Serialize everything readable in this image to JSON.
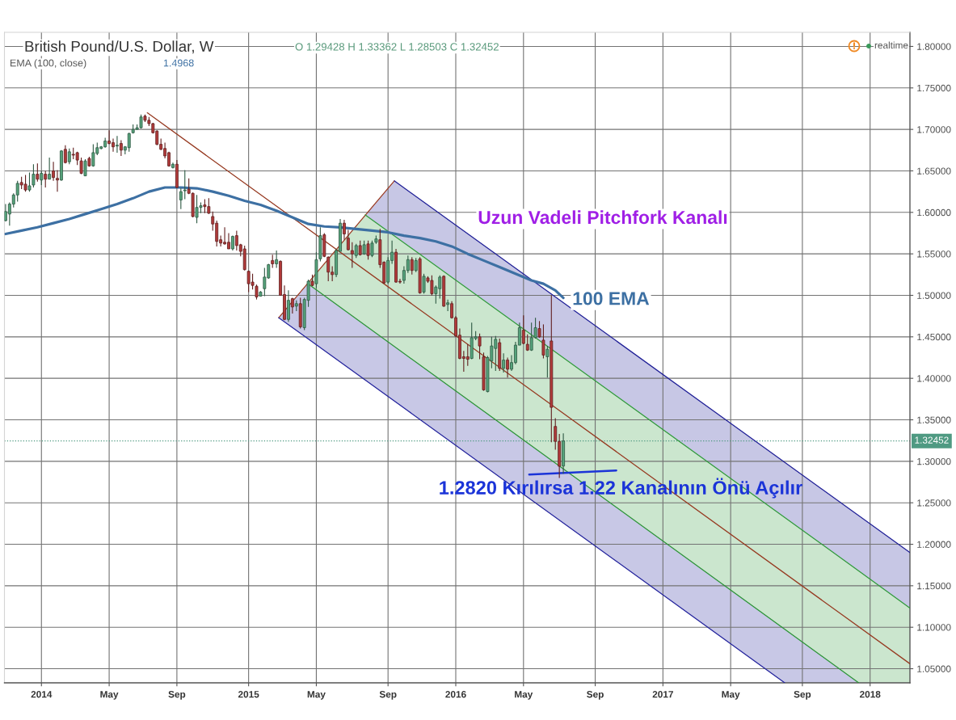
{
  "chart_data": {
    "type": "candlestick",
    "title": "British Pound/U.S. Dollar, W",
    "x": [
      "2013-11-04",
      "2013-11-11",
      "2013-11-18",
      "2013-11-25",
      "2013-12-02",
      "2013-12-09",
      "2013-12-16",
      "2013-12-23",
      "2013-12-30",
      "2014-01-06",
      "2014-01-13",
      "2014-01-20",
      "2014-01-27",
      "2014-02-03",
      "2014-02-10",
      "2014-02-17",
      "2014-02-24",
      "2014-03-03",
      "2014-03-10",
      "2014-03-17",
      "2014-03-24",
      "2014-03-31",
      "2014-04-07",
      "2014-04-14",
      "2014-04-21",
      "2014-04-28",
      "2014-05-05",
      "2014-05-12",
      "2014-05-19",
      "2014-05-26",
      "2014-06-02",
      "2014-06-09",
      "2014-06-16",
      "2014-06-23",
      "2014-06-30",
      "2014-07-07",
      "2014-07-14",
      "2014-07-21",
      "2014-07-28",
      "2014-08-04",
      "2014-08-11",
      "2014-08-18",
      "2014-08-25",
      "2014-09-01",
      "2014-09-08",
      "2014-09-15",
      "2014-09-22",
      "2014-09-29",
      "2014-10-06",
      "2014-10-13",
      "2014-10-20",
      "2014-10-27",
      "2014-11-03",
      "2014-11-10",
      "2014-11-17",
      "2014-11-24",
      "2014-12-01",
      "2014-12-08",
      "2014-12-15",
      "2014-12-22",
      "2014-12-29",
      "2015-01-05",
      "2015-01-12",
      "2015-01-19",
      "2015-01-26",
      "2015-02-02",
      "2015-02-09",
      "2015-02-16",
      "2015-02-23",
      "2015-03-02",
      "2015-03-09",
      "2015-03-16",
      "2015-03-23",
      "2015-03-30",
      "2015-04-06",
      "2015-04-13",
      "2015-04-20",
      "2015-04-27",
      "2015-05-04",
      "2015-05-11",
      "2015-05-18",
      "2015-05-25",
      "2015-06-01",
      "2015-06-08",
      "2015-06-15",
      "2015-06-22",
      "2015-06-29",
      "2015-07-06",
      "2015-07-13",
      "2015-07-20",
      "2015-07-27",
      "2015-08-03",
      "2015-08-10",
      "2015-08-17",
      "2015-08-24",
      "2015-08-31",
      "2015-09-07",
      "2015-09-14",
      "2015-09-21",
      "2015-09-28",
      "2015-10-05",
      "2015-10-12",
      "2015-10-19",
      "2015-10-26",
      "2015-11-02",
      "2015-11-09",
      "2015-11-16",
      "2015-11-23",
      "2015-11-30",
      "2015-12-07",
      "2015-12-14",
      "2015-12-21",
      "2015-12-28",
      "2016-01-04",
      "2016-01-11",
      "2016-01-18",
      "2016-01-25",
      "2016-02-01",
      "2016-02-08",
      "2016-02-15",
      "2016-02-22",
      "2016-02-29",
      "2016-03-07",
      "2016-03-14",
      "2016-03-21",
      "2016-03-28",
      "2016-04-04",
      "2016-04-11",
      "2016-04-18",
      "2016-04-25",
      "2016-05-02",
      "2016-05-09",
      "2016-05-16",
      "2016-05-23",
      "2016-05-30",
      "2016-06-06",
      "2016-06-13",
      "2016-06-20",
      "2016-06-27",
      "2016-07-04",
      "2016-07-11"
    ],
    "ohlc": [
      [
        1.59,
        1.61,
        1.589,
        1.601
      ],
      [
        1.598,
        1.612,
        1.584,
        1.61
      ],
      [
        1.61,
        1.623,
        1.606,
        1.621
      ],
      [
        1.621,
        1.638,
        1.613,
        1.635
      ],
      [
        1.636,
        1.643,
        1.628,
        1.633
      ],
      [
        1.634,
        1.645,
        1.625,
        1.627
      ],
      [
        1.627,
        1.648,
        1.625,
        1.632
      ],
      [
        1.633,
        1.658,
        1.63,
        1.646
      ],
      [
        1.646,
        1.659,
        1.637,
        1.64
      ],
      [
        1.639,
        1.65,
        1.633,
        1.647
      ],
      [
        1.646,
        1.65,
        1.63,
        1.64
      ],
      [
        1.64,
        1.666,
        1.64,
        1.646
      ],
      [
        1.65,
        1.661,
        1.638,
        1.642
      ],
      [
        1.641,
        1.651,
        1.625,
        1.639
      ],
      [
        1.639,
        1.675,
        1.638,
        1.674
      ],
      [
        1.676,
        1.681,
        1.659,
        1.66
      ],
      [
        1.661,
        1.677,
        1.658,
        1.673
      ],
      [
        1.67,
        1.678,
        1.664,
        1.669
      ],
      [
        1.672,
        1.673,
        1.657,
        1.663
      ],
      [
        1.662,
        1.666,
        1.646,
        1.647
      ],
      [
        1.644,
        1.664,
        1.644,
        1.662
      ],
      [
        1.665,
        1.667,
        1.655,
        1.656
      ],
      [
        1.656,
        1.682,
        1.655,
        1.672
      ],
      [
        1.671,
        1.684,
        1.669,
        1.678
      ],
      [
        1.677,
        1.68,
        1.676,
        1.679
      ],
      [
        1.679,
        1.69,
        1.678,
        1.686
      ],
      [
        1.686,
        1.699,
        1.682,
        1.683
      ],
      [
        1.684,
        1.689,
        1.673,
        1.679
      ],
      [
        1.68,
        1.692,
        1.672,
        1.681
      ],
      [
        1.683,
        1.687,
        1.668,
        1.675
      ],
      [
        1.675,
        1.68,
        1.67,
        1.679
      ],
      [
        1.678,
        1.696,
        1.673,
        1.695
      ],
      [
        1.696,
        1.706,
        1.695,
        1.7
      ],
      [
        1.7,
        1.706,
        1.7,
        1.702
      ],
      [
        1.702,
        1.718,
        1.701,
        1.715
      ],
      [
        1.716,
        1.718,
        1.709,
        1.711
      ],
      [
        1.711,
        1.715,
        1.704,
        1.707
      ],
      [
        1.707,
        1.708,
        1.695,
        1.696
      ],
      [
        1.698,
        1.699,
        1.681,
        1.682
      ],
      [
        1.682,
        1.689,
        1.675,
        1.676
      ],
      [
        1.677,
        1.684,
        1.665,
        1.668
      ],
      [
        1.672,
        1.673,
        1.655,
        1.656
      ],
      [
        1.654,
        1.66,
        1.653,
        1.658
      ],
      [
        1.658,
        1.663,
        1.629,
        1.63
      ],
      [
        1.615,
        1.629,
        1.604,
        1.625
      ],
      [
        1.626,
        1.651,
        1.616,
        1.627
      ],
      [
        1.628,
        1.641,
        1.622,
        1.623
      ],
      [
        1.623,
        1.624,
        1.594,
        1.595
      ],
      [
        1.594,
        1.621,
        1.587,
        1.606
      ],
      [
        1.606,
        1.612,
        1.599,
        1.608
      ],
      [
        1.609,
        1.616,
        1.599,
        1.607
      ],
      [
        1.607,
        1.617,
        1.598,
        1.599
      ],
      [
        1.595,
        1.601,
        1.578,
        1.586
      ],
      [
        1.587,
        1.59,
        1.559,
        1.565
      ],
      [
        1.567,
        1.572,
        1.559,
        1.563
      ],
      [
        1.564,
        1.582,
        1.561,
        1.562
      ],
      [
        1.564,
        1.575,
        1.556,
        1.556
      ],
      [
        1.556,
        1.572,
        1.554,
        1.571
      ],
      [
        1.572,
        1.578,
        1.554,
        1.56
      ],
      [
        1.561,
        1.562,
        1.547,
        1.553
      ],
      [
        1.556,
        1.56,
        1.53,
        1.531
      ],
      [
        1.529,
        1.53,
        1.504,
        1.514
      ],
      [
        1.516,
        1.526,
        1.507,
        1.512
      ],
      [
        1.511,
        1.513,
        1.495,
        1.498
      ],
      [
        1.499,
        1.505,
        1.499,
        1.504
      ],
      [
        1.508,
        1.533,
        1.499,
        1.522
      ],
      [
        1.521,
        1.538,
        1.52,
        1.537
      ],
      [
        1.542,
        1.549,
        1.533,
        1.538
      ],
      [
        1.538,
        1.554,
        1.533,
        1.543
      ],
      [
        1.541,
        1.542,
        1.5,
        1.5
      ],
      [
        1.501,
        1.512,
        1.47,
        1.471
      ],
      [
        1.471,
        1.506,
        1.468,
        1.494
      ],
      [
        1.496,
        1.497,
        1.478,
        1.486
      ],
      [
        1.487,
        1.494,
        1.481,
        1.49
      ],
      [
        1.49,
        1.497,
        1.46,
        1.462
      ],
      [
        1.461,
        1.497,
        1.458,
        1.495
      ],
      [
        1.494,
        1.519,
        1.486,
        1.517
      ],
      [
        1.517,
        1.525,
        1.511,
        1.512
      ],
      [
        1.514,
        1.552,
        1.509,
        1.543
      ],
      [
        1.544,
        1.582,
        1.541,
        1.572
      ],
      [
        1.573,
        1.575,
        1.546,
        1.547
      ],
      [
        1.546,
        1.547,
        1.517,
        1.528
      ],
      [
        1.528,
        1.535,
        1.517,
        1.525
      ],
      [
        1.525,
        1.556,
        1.522,
        1.554
      ],
      [
        1.553,
        1.592,
        1.553,
        1.587
      ],
      [
        1.587,
        1.591,
        1.567,
        1.574
      ],
      [
        1.569,
        1.579,
        1.554,
        1.555
      ],
      [
        1.554,
        1.564,
        1.533,
        1.55
      ],
      [
        1.548,
        1.562,
        1.545,
        1.56
      ],
      [
        1.56,
        1.566,
        1.548,
        1.549
      ],
      [
        1.55,
        1.566,
        1.549,
        1.561
      ],
      [
        1.562,
        1.566,
        1.543,
        1.548
      ],
      [
        1.548,
        1.566,
        1.546,
        1.563
      ],
      [
        1.564,
        1.572,
        1.562,
        1.568
      ],
      [
        1.567,
        1.58,
        1.533,
        1.537
      ],
      [
        1.54,
        1.541,
        1.514,
        1.515
      ],
      [
        1.516,
        1.546,
        1.514,
        1.542
      ],
      [
        1.542,
        1.566,
        1.538,
        1.552
      ],
      [
        1.552,
        1.556,
        1.515,
        1.516
      ],
      [
        1.517,
        1.52,
        1.514,
        1.516
      ],
      [
        1.518,
        1.535,
        1.514,
        1.53
      ],
      [
        1.53,
        1.548,
        1.527,
        1.543
      ],
      [
        1.543,
        1.546,
        1.525,
        1.53
      ],
      [
        1.53,
        1.545,
        1.528,
        1.542
      ],
      [
        1.544,
        1.546,
        1.502,
        1.503
      ],
      [
        1.504,
        1.526,
        1.502,
        1.523
      ],
      [
        1.521,
        1.523,
        1.515,
        1.517
      ],
      [
        1.518,
        1.524,
        1.5,
        1.502
      ],
      [
        1.502,
        1.512,
        1.49,
        1.51
      ],
      [
        1.508,
        1.524,
        1.496,
        1.522
      ],
      [
        1.523,
        1.524,
        1.486,
        1.487
      ],
      [
        1.489,
        1.495,
        1.481,
        1.491
      ],
      [
        1.49,
        1.493,
        1.472,
        1.473
      ],
      [
        1.473,
        1.475,
        1.45,
        1.451
      ],
      [
        1.452,
        1.46,
        1.423,
        1.424
      ],
      [
        1.426,
        1.433,
        1.408,
        1.424
      ],
      [
        1.426,
        1.441,
        1.415,
        1.423
      ],
      [
        1.424,
        1.467,
        1.423,
        1.449
      ],
      [
        1.448,
        1.457,
        1.446,
        1.45
      ],
      [
        1.45,
        1.454,
        1.423,
        1.439
      ],
      [
        1.426,
        1.431,
        1.385,
        1.386
      ],
      [
        1.384,
        1.427,
        1.383,
        1.425
      ],
      [
        1.421,
        1.45,
        1.412,
        1.439
      ],
      [
        1.436,
        1.451,
        1.409,
        1.447
      ],
      [
        1.443,
        1.448,
        1.409,
        1.412
      ],
      [
        1.412,
        1.43,
        1.407,
        1.422
      ],
      [
        1.422,
        1.425,
        1.401,
        1.411
      ],
      [
        1.411,
        1.428,
        1.409,
        1.419
      ],
      [
        1.419,
        1.444,
        1.417,
        1.44
      ],
      [
        1.44,
        1.467,
        1.44,
        1.461
      ],
      [
        1.458,
        1.476,
        1.441,
        1.442
      ],
      [
        1.441,
        1.453,
        1.433,
        1.434
      ],
      [
        1.434,
        1.467,
        1.433,
        1.449
      ],
      [
        1.449,
        1.473,
        1.448,
        1.461
      ],
      [
        1.46,
        1.469,
        1.449,
        1.45
      ],
      [
        1.446,
        1.465,
        1.424,
        1.428
      ],
      [
        1.426,
        1.439,
        1.401,
        1.435
      ],
      [
        1.445,
        1.5,
        1.323,
        1.365
      ],
      [
        1.342,
        1.352,
        1.314,
        1.324
      ],
      [
        1.324,
        1.333,
        1.28,
        1.294
      ],
      [
        1.29428,
        1.33362,
        1.28503,
        1.32452
      ]
    ],
    "colors": [
      "#56a47c",
      "#56a47c",
      "#56a47c",
      "#56a47c",
      "#b23a3a",
      "#b23a3a",
      "#56a47c",
      "#56a47c",
      "#b23a3a",
      "#56a47c",
      "#b23a3a",
      "#56a47c",
      "#b23a3a",
      "#b23a3a",
      "#56a47c",
      "#b23a3a",
      "#56a47c",
      "#b23a3a",
      "#b23a3a",
      "#b23a3a",
      "#56a47c",
      "#b23a3a",
      "#56a47c",
      "#56a47c",
      "#56a47c",
      "#56a47c",
      "#b23a3a",
      "#b23a3a",
      "#56a47c",
      "#b23a3a",
      "#56a47c",
      "#56a47c",
      "#56a47c",
      "#56a47c",
      "#56a47c",
      "#b23a3a",
      "#b23a3a",
      "#b23a3a",
      "#b23a3a",
      "#b23a3a",
      "#b23a3a",
      "#b23a3a",
      "#56a47c",
      "#b23a3a",
      "#56a47c",
      "#56a47c",
      "#b23a3a",
      "#b23a3a",
      "#56a47c",
      "#56a47c",
      "#b23a3a",
      "#b23a3a",
      "#b23a3a",
      "#b23a3a",
      "#b23a3a",
      "#b23a3a",
      "#b23a3a",
      "#56a47c",
      "#b23a3a",
      "#b23a3a",
      "#b23a3a",
      "#b23a3a",
      "#b23a3a",
      "#b23a3a",
      "#56a47c",
      "#56a47c",
      "#56a47c",
      "#b23a3a",
      "#56a47c",
      "#b23a3a",
      "#b23a3a",
      "#56a47c",
      "#b23a3a",
      "#56a47c",
      "#b23a3a",
      "#56a47c",
      "#56a47c",
      "#b23a3a",
      "#56a47c",
      "#56a47c",
      "#b23a3a",
      "#b23a3a",
      "#b23a3a",
      "#56a47c",
      "#56a47c",
      "#b23a3a",
      "#b23a3a",
      "#b23a3a",
      "#56a47c",
      "#b23a3a",
      "#56a47c",
      "#b23a3a",
      "#56a47c",
      "#56a47c",
      "#b23a3a",
      "#b23a3a",
      "#56a47c",
      "#56a47c",
      "#b23a3a",
      "#b23a3a",
      "#56a47c",
      "#56a47c",
      "#b23a3a",
      "#56a47c",
      "#b23a3a",
      "#56a47c",
      "#b23a3a",
      "#b23a3a",
      "#56a47c",
      "#56a47c",
      "#b23a3a",
      "#56a47c",
      "#b23a3a",
      "#b23a3a",
      "#b23a3a",
      "#b23a3a",
      "#b23a3a",
      "#56a47c",
      "#56a47c",
      "#b23a3a",
      "#b23a3a",
      "#56a47c",
      "#56a47c",
      "#56a47c",
      "#b23a3a",
      "#56a47c",
      "#b23a3a",
      "#56a47c",
      "#56a47c",
      "#56a47c",
      "#b23a3a",
      "#b23a3a",
      "#56a47c",
      "#56a47c",
      "#b23a3a",
      "#b23a3a",
      "#56a47c",
      "#b23a3a",
      "#b23a3a",
      "#b23a3a",
      "#56a47c"
    ],
    "series": [
      {
        "type": "line",
        "color": "#9c3d24",
        "x": [
          "2015-02-27",
          "2015-09-18"
        ],
        "values": [
          1.473,
          1.638
        ]
      },
      {
        "type": "line",
        "color": "#1e1e96",
        "x": [
          "2015-07-29",
          "2015-09-18",
          "2018-03-12"
        ],
        "values": [
          null,
          1.638,
          1.19
        ],
        "lower": [
          1.597,
          1.572,
          1.123
        ],
        "upper": [
          1.597,
          1.638,
          1.19
        ]
      },
      {
        "type": "line",
        "color": "#22229c",
        "x": [
          "2015-02-27",
          "2015-04-19",
          "2017-08-04",
          "2017-12-12"
        ],
        "values": [
          1.473,
          1.448,
          1.033,
          null
        ],
        "lower": [
          1.473,
          1.448,
          1.033,
          1.033
        ],
        "upper": [
          1.473,
          1.514,
          1.098,
          1.033
        ]
      },
      {
        "type": "line",
        "color": "#2f9a3a",
        "x": [
          "2015-04-19",
          "2015-07-29",
          "2017-12-12",
          "2018-03-12"
        ],
        "values": [
          null,
          1.597,
          1.168,
          1.123
        ],
        "lower": [
          1.514,
          1.464,
          1.033,
          1.033
        ],
        "upper": [
          1.514,
          1.597,
          1.168,
          1.123
        ]
      },
      {
        "type": "line",
        "color": "#2b9436",
        "x": [
          "2015-04-19",
          "2017-12-12"
        ],
        "values": [
          1.514,
          1.033
        ]
      },
      {
        "type": "line",
        "color": "#963920",
        "x": [
          "2014-07-11",
          "2018-03-12"
        ],
        "values": [
          1.72,
          1.056
        ]
      },
      {
        "type": "line",
        "name": "100 EMA",
        "color": "#3d70a3",
        "x": [
          "2013-11-04",
          "2013-12-02",
          "2013-12-30",
          "2014-01-27",
          "2014-02-24",
          "2014-03-24",
          "2014-04-21",
          "2014-05-19",
          "2014-06-16",
          "2014-07-14",
          "2014-08-11",
          "2014-09-08",
          "2014-10-06",
          "2014-11-03",
          "2014-12-01",
          "2014-12-29",
          "2015-01-26",
          "2015-02-23",
          "2015-03-23",
          "2015-04-20",
          "2015-05-18",
          "2015-06-15",
          "2015-07-13",
          "2015-08-10",
          "2015-09-07",
          "2015-10-05",
          "2015-11-02",
          "2015-11-30",
          "2015-12-28",
          "2016-01-25",
          "2016-02-22",
          "2016-03-21",
          "2016-04-18",
          "2016-05-16",
          "2016-06-06",
          "2016-06-27",
          "2016-07-11"
        ],
        "values": [
          1.574,
          1.578,
          1.582,
          1.587,
          1.592,
          1.598,
          1.604,
          1.61,
          1.617,
          1.625,
          1.63,
          1.63,
          1.629,
          1.625,
          1.62,
          1.614,
          1.609,
          1.602,
          1.594,
          1.586,
          1.583,
          1.582,
          1.58,
          1.578,
          1.576,
          1.572,
          1.569,
          1.565,
          1.559,
          1.55,
          1.542,
          1.534,
          1.526,
          1.518,
          1.514,
          1.506,
          1.497
        ]
      },
      {
        "type": "line",
        "color": "#1b34d8",
        "x": [
          "2016-05-12",
          "2016-10-12"
        ],
        "values": [
          1.284,
          1.289
        ]
      }
    ],
    "xlim": [
      "2013-11-02",
      "2018-03-12"
    ],
    "ylim": [
      1.033,
      1.817
    ],
    "xticks": [
      {
        "value": "2014-01-06",
        "label": "2014"
      },
      {
        "value": "2014-05-05",
        "label": "May"
      },
      {
        "value": "2014-09-01",
        "label": "Sep"
      },
      {
        "value": "2015-01-05",
        "label": "2015"
      },
      {
        "value": "2015-05-04",
        "label": "May"
      },
      {
        "value": "2015-09-07",
        "label": "Sep"
      },
      {
        "value": "2016-01-04",
        "label": "2016"
      },
      {
        "value": "2016-05-02",
        "label": "May"
      },
      {
        "value": "2016-09-05",
        "label": "Sep"
      },
      {
        "value": "2017-01-02",
        "label": "2017"
      },
      {
        "value": "2017-05-01",
        "label": "May"
      },
      {
        "value": "2017-09-04",
        "label": "Sep"
      },
      {
        "value": "2018-01-01",
        "label": "2018"
      }
    ],
    "yticks": [
      {
        "value": 1.05,
        "label": "1.05000"
      },
      {
        "value": 1.1,
        "label": "1.10000"
      },
      {
        "value": 1.15,
        "label": "1.15000"
      },
      {
        "value": 1.2,
        "label": "1.20000"
      },
      {
        "value": 1.25,
        "label": "1.25000"
      },
      {
        "value": 1.3,
        "label": "1.30000"
      },
      {
        "value": 1.35,
        "label": "1.35000"
      },
      {
        "value": 1.4,
        "label": "1.40000"
      },
      {
        "value": 1.45,
        "label": "1.45000"
      },
      {
        "value": 1.5,
        "label": "1.50000"
      },
      {
        "value": 1.55,
        "label": "1.55000"
      },
      {
        "value": 1.6,
        "label": "1.60000"
      },
      {
        "value": 1.65,
        "label": "1.65000"
      },
      {
        "value": 1.7,
        "label": "1.70000"
      },
      {
        "value": 1.75,
        "label": "1.75000"
      },
      {
        "value": 1.8,
        "label": "1.80000"
      }
    ],
    "grid": true,
    "ref_lines": [
      {
        "axis": "y",
        "value": 1.32452,
        "label": "1.32452",
        "color": "#4f9a82",
        "line_style": "dotted"
      }
    ],
    "annotations": [
      "O 1.29428 H 1.33362 L 1.28503 C 1.32452",
      "EMA (100, close)",
      "1.4968",
      "realtime",
      "Uzun Vadeli Pitchfork Kanalı",
      "1.2820 Kırılırsa 1.22 Kanalının Önü Açılır"
    ]
  }
}
